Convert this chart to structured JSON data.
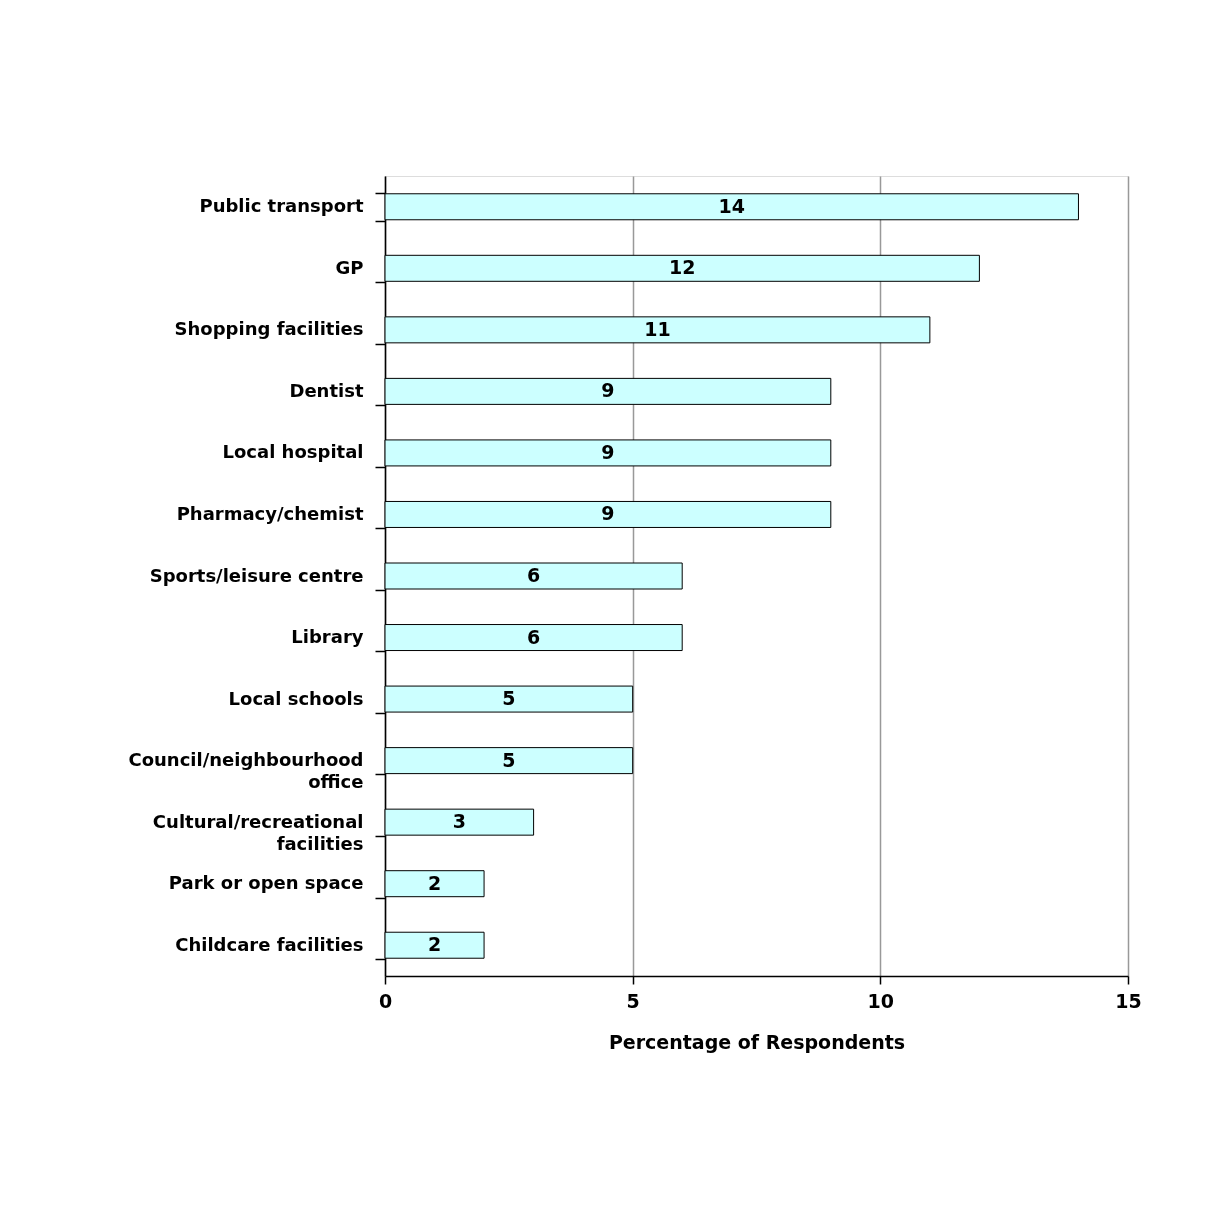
{
  "chart_data": {
    "type": "bar",
    "orientation": "horizontal",
    "xlabel": "Percentage of Respondents",
    "categories": [
      "Public transport",
      "GP",
      "Shopping facilities",
      "Dentist",
      "Local hospital",
      "Pharmacy/chemist",
      "Sports/leisure centre",
      "Library",
      "Local schools",
      "Council/neighbourhood office",
      "Cultural/recreational facilities",
      "Park or open space",
      "Childcare facilities"
    ],
    "values": [
      14,
      12,
      11,
      9,
      9,
      9,
      6,
      6,
      5,
      5,
      3,
      2,
      2
    ],
    "color": "#ccffff",
    "xlim": [
      0,
      15
    ],
    "xticks": [
      0,
      5,
      10,
      15
    ],
    "grid": "x",
    "data_labels": true
  }
}
